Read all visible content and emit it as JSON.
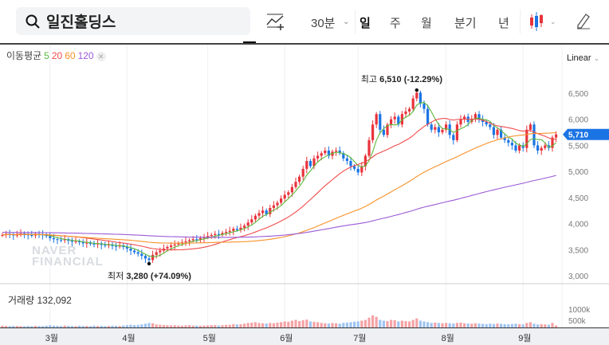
{
  "header": {
    "stock_name": "일진홀딩스",
    "intervals": [
      "30분",
      "일",
      "주",
      "월",
      "분기",
      "년"
    ],
    "active_interval": "일"
  },
  "indicators": {
    "label": "이동평균",
    "periods": [
      "5",
      "20",
      "60",
      "120"
    ],
    "colors": [
      "#5cb83a",
      "#f04b4b",
      "#f7922a",
      "#9b5ad6"
    ]
  },
  "scale": "Linear",
  "annotations": {
    "high": "최고",
    "high_value": "6,510 (-12.29%)",
    "low": "최저",
    "low_value": "3,280 (+74.09%)"
  },
  "current_price": "5,710",
  "volume": {
    "label": "거래량",
    "value": "132,092",
    "ticks": [
      "1000k",
      "500k"
    ]
  },
  "watermark": [
    "NAVER",
    "FINANCIAL"
  ],
  "colors": {
    "up": "#e8333b",
    "down": "#1b74e4",
    "accent": "#1b74e4"
  },
  "chart_data": {
    "type": "candlestick",
    "y_ticks": [
      "6,500",
      "6,000",
      "5,500",
      "5,000",
      "4,500",
      "4,000",
      "3,500",
      "3,000"
    ],
    "ylim": [
      3000,
      6500
    ],
    "months": [
      "3월",
      "4월",
      "5월",
      "6월",
      "7월",
      "8월",
      "9월"
    ],
    "closes": [
      3780,
      3800,
      3790,
      3770,
      3800,
      3810,
      3790,
      3780,
      3770,
      3800,
      3790,
      3780,
      3760,
      3720,
      3700,
      3690,
      3680,
      3700,
      3670,
      3650,
      3660,
      3640,
      3620,
      3630,
      3610,
      3600,
      3620,
      3590,
      3580,
      3600,
      3570,
      3560,
      3580,
      3550,
      3520,
      3480,
      3450,
      3420,
      3380,
      3330,
      3300,
      3400,
      3450,
      3480,
      3520,
      3550,
      3580,
      3600,
      3620,
      3640,
      3660,
      3680,
      3700,
      3690,
      3720,
      3740,
      3760,
      3780,
      3800,
      3790,
      3820,
      3840,
      3860,
      3900,
      3880,
      3920,
      3960,
      4020,
      4080,
      4150,
      4200,
      4250,
      4180,
      4300,
      4350,
      4400,
      4480,
      4550,
      4600,
      4700,
      4800,
      4900,
      5050,
      5200,
      5100,
      5250,
      5300,
      5350,
      5400,
      5300,
      5380,
      5400,
      5350,
      5250,
      5200,
      5100,
      5050,
      4980,
      5100,
      5300,
      5600,
      5900,
      6100,
      5800,
      5700,
      5900,
      6000,
      6050,
      5900,
      6100,
      6150,
      6200,
      6400,
      6510,
      6300,
      6200,
      5900,
      5800,
      5850,
      5750,
      5800,
      5900,
      5700,
      5600,
      5900,
      6000,
      6050,
      5950,
      6000,
      6100,
      6000,
      5950,
      5900,
      5850,
      5700,
      5800,
      5650,
      5600,
      5550,
      5500,
      5400,
      5500,
      5450,
      5800,
      5900,
      5500,
      5400,
      5450,
      5500,
      5450,
      5650,
      5710
    ],
    "volumes_k": [
      120,
      100,
      90,
      110,
      100,
      90,
      80,
      100,
      90,
      110,
      100,
      90,
      120,
      150,
      120,
      110,
      100,
      130,
      110,
      100,
      90,
      120,
      110,
      100,
      90,
      120,
      100,
      110,
      90,
      100,
      120,
      110,
      100,
      130,
      150,
      180,
      160,
      170,
      200,
      250,
      300,
      280,
      200,
      180,
      160,
      150,
      140,
      150,
      130,
      120,
      140,
      150,
      130,
      120,
      110,
      130,
      140,
      150,
      160,
      130,
      150,
      170,
      180,
      220,
      200,
      210,
      250,
      300,
      320,
      350,
      300,
      280,
      260,
      300,
      280,
      320,
      350,
      400,
      380,
      450,
      500,
      420,
      480,
      520,
      400,
      380,
      350,
      300,
      280,
      260,
      300,
      280,
      250,
      300,
      320,
      350,
      380,
      400,
      450,
      500,
      650,
      800,
      700,
      500,
      450,
      420,
      500,
      480,
      400,
      450,
      420,
      400,
      500,
      600,
      450,
      400,
      350,
      300,
      320,
      300,
      280,
      300,
      280,
      260,
      300,
      320,
      280,
      260,
      250,
      280,
      260,
      240,
      220,
      250,
      230,
      260,
      240,
      220,
      210,
      230,
      250,
      220,
      200,
      300,
      350,
      250,
      200,
      220,
      200,
      180,
      300,
      132
    ]
  }
}
